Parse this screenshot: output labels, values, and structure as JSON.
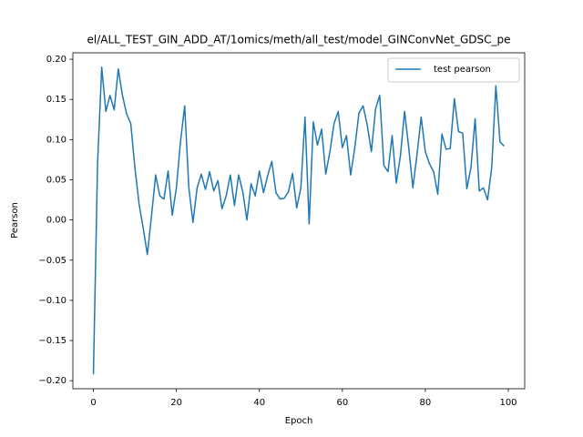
{
  "chart_data": {
    "type": "line",
    "title": "el/ALL_TEST_GIN_ADD_AT/1omics/meth/all_test/model_GINConvNet_GDSC_pe",
    "x_label": "Epoch",
    "y_label": "Pearson",
    "x": [
      0,
      1,
      2,
      3,
      4,
      5,
      6,
      7,
      8,
      9,
      10,
      11,
      12,
      13,
      14,
      15,
      16,
      17,
      18,
      19,
      20,
      21,
      22,
      23,
      24,
      25,
      26,
      27,
      28,
      29,
      30,
      31,
      32,
      33,
      34,
      35,
      36,
      37,
      38,
      39,
      40,
      41,
      42,
      43,
      44,
      45,
      46,
      47,
      48,
      49,
      50,
      51,
      52,
      53,
      54,
      55,
      56,
      57,
      58,
      59,
      60,
      61,
      62,
      63,
      64,
      65,
      66,
      67,
      68,
      69,
      70,
      71,
      72,
      73,
      74,
      75,
      76,
      77,
      78,
      79,
      80,
      81,
      82,
      83,
      84,
      85,
      86,
      87,
      88,
      89,
      90,
      91,
      92,
      93,
      94,
      95,
      96,
      97,
      98,
      99
    ],
    "series": [
      {
        "name": "test pearson",
        "color": "#1f77b4",
        "values": [
          -0.192,
          0.07,
          0.19,
          0.135,
          0.155,
          0.137,
          0.188,
          0.155,
          0.132,
          0.12,
          0.065,
          0.02,
          -0.01,
          -0.043,
          0.005,
          0.056,
          0.03,
          0.026,
          0.061,
          0.006,
          0.04,
          0.098,
          0.142,
          0.04,
          -0.003,
          0.04,
          0.057,
          0.038,
          0.06,
          0.036,
          0.049,
          0.014,
          0.03,
          0.056,
          0.018,
          0.056,
          0.035,
          0.0,
          0.045,
          0.03,
          0.061,
          0.034,
          0.055,
          0.073,
          0.034,
          0.026,
          0.027,
          0.035,
          0.058,
          0.015,
          0.04,
          0.128,
          -0.005,
          0.122,
          0.093,
          0.113,
          0.057,
          0.085,
          0.12,
          0.135,
          0.09,
          0.105,
          0.056,
          0.09,
          0.133,
          0.142,
          0.118,
          0.085,
          0.138,
          0.155,
          0.068,
          0.06,
          0.105,
          0.046,
          0.08,
          0.135,
          0.09,
          0.04,
          0.082,
          0.128,
          0.085,
          0.07,
          0.06,
          0.032,
          0.107,
          0.088,
          0.089,
          0.151,
          0.11,
          0.108,
          0.039,
          0.065,
          0.126,
          0.036,
          0.04,
          0.025,
          0.065,
          0.167,
          0.097,
          0.092
        ]
      }
    ],
    "xlim": [
      -4.95,
      103.95
    ],
    "ylim": [
      -0.21,
      0.208
    ],
    "xticks": [
      0,
      20,
      40,
      60,
      80,
      100
    ],
    "yticks": [
      {
        "value": -0.2,
        "label": "−0.20"
      },
      {
        "value": -0.15,
        "label": "−0.15"
      },
      {
        "value": -0.1,
        "label": "−0.10"
      },
      {
        "value": -0.05,
        "label": "−0.05"
      },
      {
        "value": 0,
        "label": "0.00"
      },
      {
        "value": 0.05,
        "label": "0.05"
      },
      {
        "value": 0.1,
        "label": "0.10"
      },
      {
        "value": 0.15,
        "label": "0.15"
      },
      {
        "value": 0.2,
        "label": "0.20"
      }
    ],
    "legend": "upper right",
    "grid": false
  }
}
